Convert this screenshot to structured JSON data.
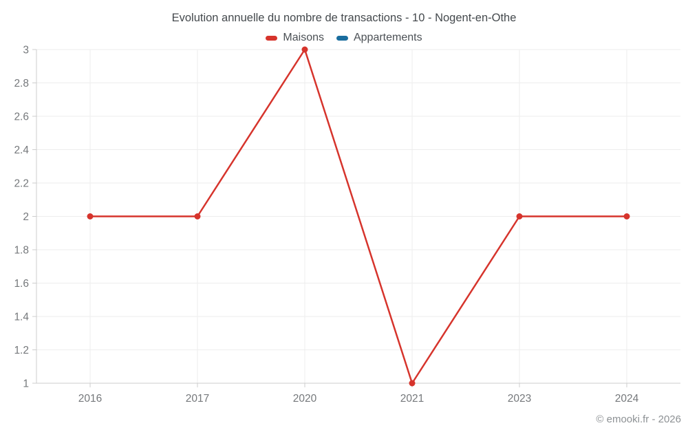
{
  "title": "Evolution annuelle du nombre de transactions - 10 - Nogent-en-Othe",
  "footer": "© emooki.fr - 2026",
  "legend": {
    "items": [
      {
        "label": "Maisons",
        "color": "#d6342c"
      },
      {
        "label": "Appartements",
        "color": "#1a6d9e"
      }
    ]
  },
  "colors": {
    "maisons": "#d6342c",
    "appartements": "#1a6d9e",
    "gridline": "#ededed",
    "axis_line": "#cccccc",
    "tick_label": "#75787b",
    "title_text": "#44494d",
    "footer_text": "#8d9194"
  },
  "chart_data": {
    "type": "line",
    "title": "Evolution annuelle du nombre de transactions - 10 - Nogent-en-Othe",
    "categories": [
      "2016",
      "2017",
      "2020",
      "2021",
      "2023",
      "2024"
    ],
    "series": [
      {
        "name": "Maisons",
        "color": "#d6342c",
        "values": [
          2,
          2,
          3,
          1,
          2,
          2
        ]
      },
      {
        "name": "Appartements",
        "color": "#1a6d9e",
        "values": [
          null,
          null,
          null,
          null,
          null,
          null
        ]
      }
    ],
    "xlabel": "",
    "ylabel": "",
    "ylim": [
      1,
      3
    ],
    "ytick_labels": [
      "1",
      "1.2",
      "1.4",
      "1.6",
      "1.8",
      "2",
      "2.2",
      "2.4",
      "2.6",
      "2.8",
      "3"
    ],
    "ytick_values": [
      1,
      1.2,
      1.4,
      1.6,
      1.8,
      2,
      2.2,
      2.4,
      2.6,
      2.8,
      3
    ],
    "grid": true,
    "legend_position": "top",
    "marker": "circle"
  }
}
